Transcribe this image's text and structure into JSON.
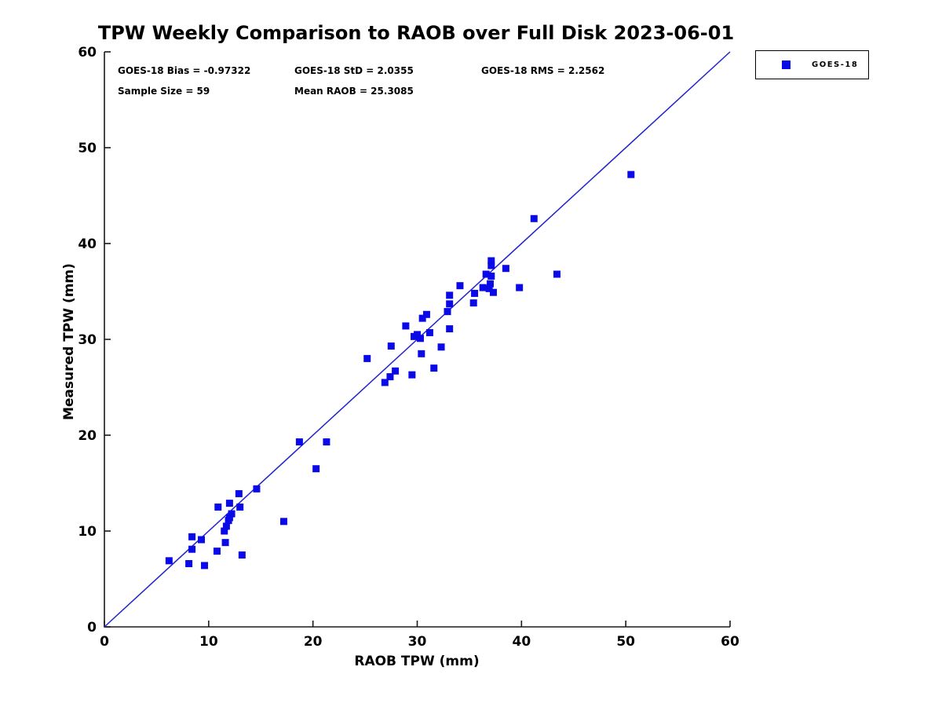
{
  "title": "TPW Weekly Comparison to RAOB over Full Disk 2023-06-01",
  "stats": {
    "bias": "GOES-18 Bias = -0.97322",
    "std": "GOES-18 StD = 2.0355",
    "rms": "GOES-18 RMS = 2.2562",
    "sample_size": "Sample Size = 59",
    "mean_raob": "Mean RAOB = 25.3085"
  },
  "legend": {
    "label": "GOES-18",
    "marker_color": "#0a0ae8"
  },
  "colors": {
    "marker": "#0a0ae8",
    "line": "#2222cc",
    "axis": "#1a1a1a",
    "text": "#000000"
  },
  "chart_data": {
    "type": "scatter",
    "title": "TPW Weekly Comparison to RAOB over Full Disk 2023-06-01",
    "xlabel": "RAOB TPW (mm)",
    "ylabel": "Measured TPW (mm)",
    "xlim": [
      0,
      60
    ],
    "ylim": [
      0,
      60
    ],
    "xticks": [
      0,
      10,
      20,
      30,
      40,
      50,
      60
    ],
    "yticks": [
      0,
      10,
      20,
      30,
      40,
      50,
      60
    ],
    "grid": false,
    "legend_position": "outside-top-right",
    "identity_line": {
      "from": [
        0,
        0
      ],
      "to": [
        60,
        60
      ]
    },
    "series": [
      {
        "name": "GOES-18",
        "marker": "square",
        "points": [
          [
            6.2,
            6.9
          ],
          [
            8.1,
            6.6
          ],
          [
            9.6,
            6.4
          ],
          [
            8.4,
            8.1
          ],
          [
            8.4,
            9.4
          ],
          [
            9.3,
            9.1
          ],
          [
            10.8,
            7.9
          ],
          [
            11.6,
            8.8
          ],
          [
            13.2,
            7.5
          ],
          [
            10.9,
            12.5
          ],
          [
            12.0,
            12.9
          ],
          [
            12.9,
            13.9
          ],
          [
            14.6,
            14.4
          ],
          [
            13.0,
            12.5
          ],
          [
            12.2,
            11.8
          ],
          [
            12.0,
            11.4
          ],
          [
            11.9,
            11.1
          ],
          [
            11.7,
            10.5
          ],
          [
            11.5,
            10.0
          ],
          [
            17.2,
            11.0
          ],
          [
            18.7,
            19.3
          ],
          [
            21.3,
            19.3
          ],
          [
            20.3,
            16.5
          ],
          [
            25.2,
            28.0
          ],
          [
            27.5,
            29.3
          ],
          [
            26.9,
            25.5
          ],
          [
            27.4,
            26.1
          ],
          [
            27.9,
            26.7
          ],
          [
            29.5,
            26.3
          ],
          [
            31.6,
            27.0
          ],
          [
            30.4,
            28.5
          ],
          [
            32.3,
            29.2
          ],
          [
            33.1,
            31.1
          ],
          [
            28.9,
            31.4
          ],
          [
            29.7,
            30.3
          ],
          [
            30.0,
            30.5
          ],
          [
            30.3,
            30.1
          ],
          [
            31.2,
            30.7
          ],
          [
            30.5,
            32.2
          ],
          [
            30.9,
            32.6
          ],
          [
            32.9,
            32.9
          ],
          [
            33.1,
            33.7
          ],
          [
            33.1,
            34.6
          ],
          [
            34.1,
            35.6
          ],
          [
            35.5,
            34.8
          ],
          [
            35.4,
            33.8
          ],
          [
            36.3,
            35.4
          ],
          [
            36.9,
            35.3
          ],
          [
            37.3,
            34.9
          ],
          [
            37.0,
            35.8
          ],
          [
            36.6,
            36.8
          ],
          [
            37.1,
            36.6
          ],
          [
            37.1,
            37.7
          ],
          [
            37.1,
            38.2
          ],
          [
            38.5,
            37.4
          ],
          [
            39.8,
            35.4
          ],
          [
            41.2,
            42.6
          ],
          [
            43.4,
            36.8
          ],
          [
            50.5,
            47.2
          ]
        ]
      }
    ]
  }
}
